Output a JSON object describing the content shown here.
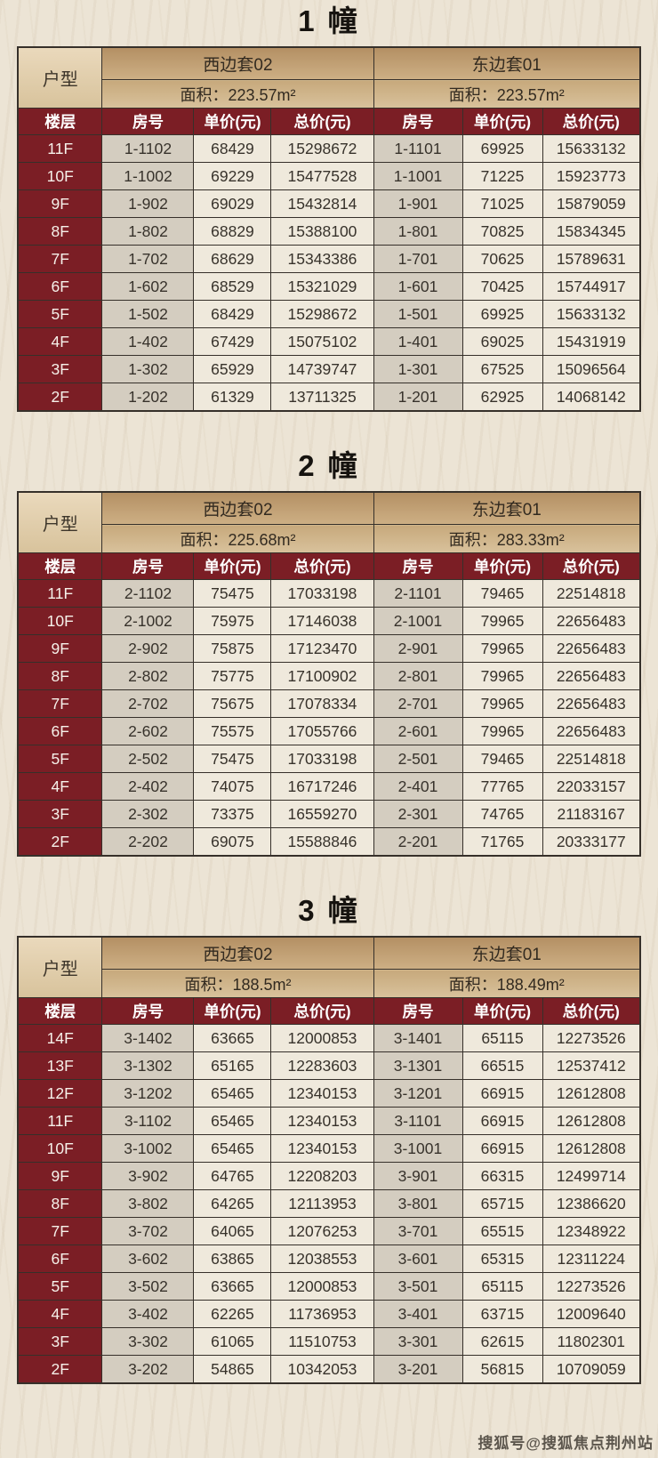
{
  "watermark": "搜狐号@搜狐焦点荆州站",
  "labels": {
    "unit_type": "户型",
    "area_prefix": "面积：",
    "columns": [
      "楼层",
      "房号",
      "单价(元)",
      "总价(元)",
      "房号",
      "单价(元)",
      "总价(元)"
    ]
  },
  "colors": {
    "maroon": "#7b1e25",
    "header_tan": "#c4a06f",
    "cell_cream": "#efe9dc",
    "cell_greige": "#d4cdc0",
    "page_bg": "#ece4d5"
  },
  "buildings": [
    {
      "title": "1 幢",
      "west_name": "西边套02",
      "west_area": "223.57m²",
      "east_name": "东边套01",
      "east_area": "223.57m²",
      "rows": [
        [
          "11F",
          "1-1102",
          "68429",
          "15298672",
          "1-1101",
          "69925",
          "15633132"
        ],
        [
          "10F",
          "1-1002",
          "69229",
          "15477528",
          "1-1001",
          "71225",
          "15923773"
        ],
        [
          "9F",
          "1-902",
          "69029",
          "15432814",
          "1-901",
          "71025",
          "15879059"
        ],
        [
          "8F",
          "1-802",
          "68829",
          "15388100",
          "1-801",
          "70825",
          "15834345"
        ],
        [
          "7F",
          "1-702",
          "68629",
          "15343386",
          "1-701",
          "70625",
          "15789631"
        ],
        [
          "6F",
          "1-602",
          "68529",
          "15321029",
          "1-601",
          "70425",
          "15744917"
        ],
        [
          "5F",
          "1-502",
          "68429",
          "15298672",
          "1-501",
          "69925",
          "15633132"
        ],
        [
          "4F",
          "1-402",
          "67429",
          "15075102",
          "1-401",
          "69025",
          "15431919"
        ],
        [
          "3F",
          "1-302",
          "65929",
          "14739747",
          "1-301",
          "67525",
          "15096564"
        ],
        [
          "2F",
          "1-202",
          "61329",
          "13711325",
          "1-201",
          "62925",
          "14068142"
        ]
      ]
    },
    {
      "title": "2 幢",
      "west_name": "西边套02",
      "west_area": "225.68m²",
      "east_name": "东边套01",
      "east_area": "283.33m²",
      "rows": [
        [
          "11F",
          "2-1102",
          "75475",
          "17033198",
          "2-1101",
          "79465",
          "22514818"
        ],
        [
          "10F",
          "2-1002",
          "75975",
          "17146038",
          "2-1001",
          "79965",
          "22656483"
        ],
        [
          "9F",
          "2-902",
          "75875",
          "17123470",
          "2-901",
          "79965",
          "22656483"
        ],
        [
          "8F",
          "2-802",
          "75775",
          "17100902",
          "2-801",
          "79965",
          "22656483"
        ],
        [
          "7F",
          "2-702",
          "75675",
          "17078334",
          "2-701",
          "79965",
          "22656483"
        ],
        [
          "6F",
          "2-602",
          "75575",
          "17055766",
          "2-601",
          "79965",
          "22656483"
        ],
        [
          "5F",
          "2-502",
          "75475",
          "17033198",
          "2-501",
          "79465",
          "22514818"
        ],
        [
          "4F",
          "2-402",
          "74075",
          "16717246",
          "2-401",
          "77765",
          "22033157"
        ],
        [
          "3F",
          "2-302",
          "73375",
          "16559270",
          "2-301",
          "74765",
          "21183167"
        ],
        [
          "2F",
          "2-202",
          "69075",
          "15588846",
          "2-201",
          "71765",
          "20333177"
        ]
      ]
    },
    {
      "title": "3 幢",
      "west_name": "西边套02",
      "west_area": "188.5m²",
      "east_name": "东边套01",
      "east_area": "188.49m²",
      "rows": [
        [
          "14F",
          "3-1402",
          "63665",
          "12000853",
          "3-1401",
          "65115",
          "12273526"
        ],
        [
          "13F",
          "3-1302",
          "65165",
          "12283603",
          "3-1301",
          "66515",
          "12537412"
        ],
        [
          "12F",
          "3-1202",
          "65465",
          "12340153",
          "3-1201",
          "66915",
          "12612808"
        ],
        [
          "11F",
          "3-1102",
          "65465",
          "12340153",
          "3-1101",
          "66915",
          "12612808"
        ],
        [
          "10F",
          "3-1002",
          "65465",
          "12340153",
          "3-1001",
          "66915",
          "12612808"
        ],
        [
          "9F",
          "3-902",
          "64765",
          "12208203",
          "3-901",
          "66315",
          "12499714"
        ],
        [
          "8F",
          "3-802",
          "64265",
          "12113953",
          "3-801",
          "65715",
          "12386620"
        ],
        [
          "7F",
          "3-702",
          "64065",
          "12076253",
          "3-701",
          "65515",
          "12348922"
        ],
        [
          "6F",
          "3-602",
          "63865",
          "12038553",
          "3-601",
          "65315",
          "12311224"
        ],
        [
          "5F",
          "3-502",
          "63665",
          "12000853",
          "3-501",
          "65115",
          "12273526"
        ],
        [
          "4F",
          "3-402",
          "62265",
          "11736953",
          "3-401",
          "63715",
          "12009640"
        ],
        [
          "3F",
          "3-302",
          "61065",
          "11510753",
          "3-301",
          "62615",
          "11802301"
        ],
        [
          "2F",
          "3-202",
          "54865",
          "10342053",
          "3-201",
          "56815",
          "10709059"
        ]
      ]
    }
  ]
}
